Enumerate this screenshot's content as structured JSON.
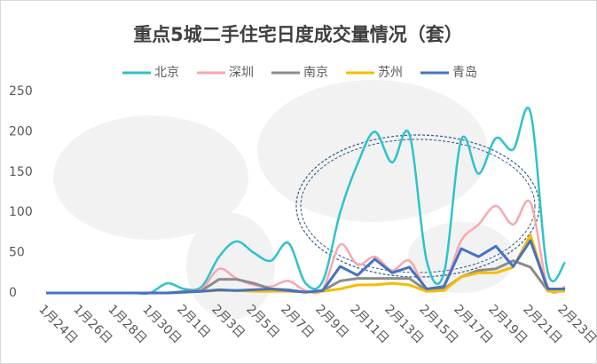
{
  "chart_data": {
    "type": "line",
    "title": "重点5城二手住宅日度成交量情况（套）",
    "categories": [
      "1月24日",
      null,
      "1月26日",
      null,
      "1月28日",
      null,
      "1月30日",
      null,
      "2月1日",
      null,
      "2月3日",
      null,
      "2月5日",
      null,
      "2月7日",
      null,
      "2月9日",
      null,
      "2月11日",
      null,
      "2月13日",
      null,
      "2月15日",
      null,
      "2月17日",
      null,
      "2月19日",
      null,
      "2月21日",
      null,
      "2月23日"
    ],
    "series": [
      {
        "name": "北京",
        "color": "#2cc3cc",
        "smooth": true,
        "values": [
          0,
          0,
          0,
          0,
          0,
          0,
          0,
          12,
          5,
          8,
          45,
          64,
          50,
          40,
          62,
          12,
          15,
          100,
          160,
          200,
          162,
          197,
          40,
          25,
          190,
          148,
          192,
          178,
          224,
          26,
          38
        ]
      },
      {
        "name": "深圳",
        "color": "#f9a7b0",
        "smooth": true,
        "values": [
          0,
          0,
          0,
          0,
          0,
          0,
          0,
          0,
          2,
          5,
          30,
          18,
          10,
          8,
          15,
          3,
          5,
          60,
          35,
          45,
          28,
          40,
          5,
          10,
          65,
          85,
          108,
          85,
          112,
          8,
          8
        ]
      },
      {
        "name": "南京",
        "color": "#8c8c8c",
        "smooth": false,
        "values": [
          0,
          0,
          0,
          0,
          0,
          0,
          0,
          0,
          2,
          3,
          17,
          17,
          12,
          5,
          4,
          1,
          3,
          15,
          18,
          18,
          18,
          18,
          3,
          5,
          20,
          28,
          30,
          40,
          32,
          3,
          3
        ]
      },
      {
        "name": "苏州",
        "color": "#f5bd00",
        "smooth": false,
        "values": [
          0,
          0,
          0,
          0,
          0,
          0,
          0,
          0,
          1,
          2,
          3,
          3,
          2,
          2,
          2,
          1,
          2,
          5,
          10,
          10,
          12,
          10,
          2,
          3,
          20,
          25,
          25,
          32,
          72,
          2,
          2
        ]
      },
      {
        "name": "青岛",
        "color": "#4472c4",
        "smooth": false,
        "values": [
          0,
          0,
          0,
          0,
          0,
          0,
          0,
          0,
          1,
          2,
          4,
          3,
          4,
          5,
          3,
          1,
          3,
          33,
          22,
          42,
          25,
          32,
          5,
          8,
          55,
          45,
          58,
          33,
          65,
          5,
          5
        ]
      }
    ],
    "ylim": [
      0,
      250
    ],
    "yticks": [
      0,
      50,
      100,
      150,
      200,
      250
    ],
    "grid": false
  }
}
